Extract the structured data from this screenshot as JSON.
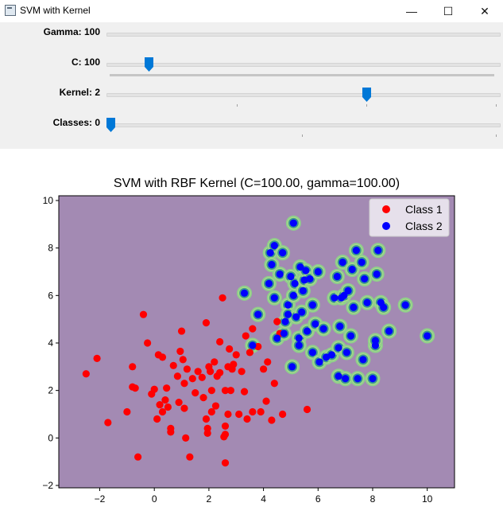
{
  "window": {
    "title": "SVM with Kernel",
    "minimize_glyph": "—",
    "maximize_glyph": "☐",
    "close_glyph": "✕"
  },
  "sliders": [
    {
      "label": "Gamma: 100",
      "value": 100,
      "fraction": 1.0,
      "show_thumb": false
    },
    {
      "label": "C: 100",
      "value": 100,
      "fraction": 0.1,
      "show_thumb": true
    },
    {
      "label": "Kernel: 2",
      "value": 2,
      "fraction": 0.66,
      "show_thumb": true
    },
    {
      "label": "Classes: 0",
      "value": 0,
      "fraction": 0.0,
      "show_thumb": true
    }
  ],
  "colors": {
    "background_region": "#a38ab3",
    "class1": "#ff0000",
    "class2": "#0000ff",
    "decision_boundary": "#8fd18a",
    "slider_thumb": "#0078d7"
  },
  "chart_data": {
    "type": "scatter",
    "title": "SVM with RBF Kernel (C=100.00, gamma=100.00)",
    "xlim": [
      -3.5,
      11
    ],
    "ylim": [
      -2.1,
      10.2
    ],
    "xticks": [
      -2,
      0,
      2,
      4,
      6,
      8,
      10
    ],
    "yticks": [
      -2,
      0,
      2,
      4,
      6,
      8,
      10
    ],
    "xtick_labels": [
      "−2",
      "0",
      "2",
      "4",
      "6",
      "8",
      "10"
    ],
    "ytick_labels": [
      "−2",
      "0",
      "2",
      "4",
      "6",
      "8",
      "10"
    ],
    "legend_position": "top-right",
    "series": [
      {
        "name": "Class 1",
        "color": "#ff0000",
        "points": [
          [
            -2.5,
            2.7
          ],
          [
            -2.1,
            3.35
          ],
          [
            -1.7,
            0.65
          ],
          [
            -1.0,
            1.1
          ],
          [
            -0.8,
            3.0
          ],
          [
            -0.8,
            2.15
          ],
          [
            -0.7,
            2.1
          ],
          [
            -0.6,
            -0.8
          ],
          [
            -0.4,
            5.2
          ],
          [
            -0.25,
            4.0
          ],
          [
            -0.1,
            1.85
          ],
          [
            0.0,
            2.05
          ],
          [
            0.1,
            0.8
          ],
          [
            0.15,
            3.5
          ],
          [
            0.2,
            1.4
          ],
          [
            0.3,
            3.4
          ],
          [
            0.3,
            1.1
          ],
          [
            0.4,
            1.6
          ],
          [
            0.45,
            2.1
          ],
          [
            0.5,
            1.3
          ],
          [
            0.6,
            0.4
          ],
          [
            0.6,
            0.25
          ],
          [
            0.7,
            3.05
          ],
          [
            0.85,
            2.6
          ],
          [
            0.95,
            3.65
          ],
          [
            0.9,
            1.5
          ],
          [
            1.0,
            4.5
          ],
          [
            1.05,
            3.3
          ],
          [
            1.1,
            2.3
          ],
          [
            1.1,
            1.25
          ],
          [
            1.15,
            0.0
          ],
          [
            1.2,
            2.9
          ],
          [
            1.3,
            -0.8
          ],
          [
            1.4,
            2.5
          ],
          [
            1.5,
            1.9
          ],
          [
            1.6,
            2.8
          ],
          [
            1.75,
            2.55
          ],
          [
            1.8,
            1.7
          ],
          [
            1.9,
            4.85
          ],
          [
            1.9,
            0.8
          ],
          [
            1.95,
            0.4
          ],
          [
            1.95,
            0.2
          ],
          [
            2.0,
            3.0
          ],
          [
            2.05,
            2.8
          ],
          [
            2.1,
            1.1
          ],
          [
            2.1,
            2.0
          ],
          [
            2.2,
            3.2
          ],
          [
            2.25,
            1.35
          ],
          [
            2.3,
            2.6
          ],
          [
            2.4,
            4.05
          ],
          [
            2.4,
            2.75
          ],
          [
            2.5,
            5.9
          ],
          [
            2.55,
            0.05
          ],
          [
            2.6,
            2.0
          ],
          [
            2.6,
            0.15
          ],
          [
            2.6,
            -1.05
          ],
          [
            2.6,
            0.5
          ],
          [
            2.7,
            3.0
          ],
          [
            2.7,
            1.0
          ],
          [
            2.75,
            3.75
          ],
          [
            2.8,
            2.0
          ],
          [
            2.85,
            2.9
          ],
          [
            2.9,
            3.1
          ],
          [
            3.0,
            3.5
          ],
          [
            3.1,
            1.0
          ],
          [
            3.2,
            2.8
          ],
          [
            3.3,
            1.95
          ],
          [
            3.35,
            4.3
          ],
          [
            3.4,
            0.8
          ],
          [
            3.5,
            3.6
          ],
          [
            3.6,
            4.6
          ],
          [
            3.6,
            1.1
          ],
          [
            3.8,
            3.85
          ],
          [
            3.9,
            1.1
          ],
          [
            4.0,
            2.9
          ],
          [
            4.1,
            1.55
          ],
          [
            4.15,
            3.2
          ],
          [
            4.3,
            0.75
          ],
          [
            4.4,
            2.3
          ],
          [
            4.5,
            4.9
          ],
          [
            4.6,
            4.4
          ],
          [
            4.7,
            1.0
          ],
          [
            5.6,
            1.2
          ]
        ]
      },
      {
        "name": "Class 2",
        "color": "#0000ff",
        "points": [
          [
            3.3,
            6.1
          ],
          [
            3.6,
            3.9
          ],
          [
            3.8,
            5.2
          ],
          [
            4.2,
            6.5
          ],
          [
            4.25,
            7.8
          ],
          [
            4.3,
            7.3
          ],
          [
            4.4,
            8.1
          ],
          [
            4.4,
            5.9
          ],
          [
            4.5,
            4.2
          ],
          [
            4.6,
            6.9
          ],
          [
            4.7,
            7.8
          ],
          [
            4.75,
            4.4
          ],
          [
            4.8,
            4.9
          ],
          [
            4.9,
            5.6
          ],
          [
            4.9,
            5.2
          ],
          [
            5.0,
            6.8
          ],
          [
            5.05,
            3.0
          ],
          [
            5.1,
            6.0
          ],
          [
            5.1,
            9.05
          ],
          [
            5.15,
            6.5
          ],
          [
            5.2,
            5.1
          ],
          [
            5.3,
            4.2
          ],
          [
            5.3,
            3.9
          ],
          [
            5.35,
            7.2
          ],
          [
            5.4,
            5.3
          ],
          [
            5.45,
            6.2
          ],
          [
            5.5,
            6.65
          ],
          [
            5.55,
            7.05
          ],
          [
            5.6,
            4.5
          ],
          [
            5.7,
            6.7
          ],
          [
            5.8,
            5.6
          ],
          [
            5.8,
            3.6
          ],
          [
            5.9,
            4.8
          ],
          [
            6.0,
            7.0
          ],
          [
            6.05,
            3.2
          ],
          [
            6.2,
            4.6
          ],
          [
            6.3,
            3.4
          ],
          [
            6.5,
            3.5
          ],
          [
            6.6,
            5.9
          ],
          [
            6.7,
            6.8
          ],
          [
            6.75,
            3.8
          ],
          [
            6.75,
            2.6
          ],
          [
            6.8,
            4.7
          ],
          [
            6.85,
            5.9
          ],
          [
            6.9,
            7.4
          ],
          [
            6.95,
            6.0
          ],
          [
            7.0,
            2.5
          ],
          [
            7.05,
            3.6
          ],
          [
            7.1,
            6.2
          ],
          [
            7.2,
            4.3
          ],
          [
            7.25,
            7.1
          ],
          [
            7.3,
            5.5
          ],
          [
            7.4,
            7.9
          ],
          [
            7.45,
            2.5
          ],
          [
            7.6,
            7.4
          ],
          [
            7.65,
            3.3
          ],
          [
            7.7,
            6.7
          ],
          [
            7.8,
            5.7
          ],
          [
            8.0,
            2.5
          ],
          [
            8.1,
            3.9
          ],
          [
            8.1,
            4.1
          ],
          [
            8.15,
            6.9
          ],
          [
            8.2,
            7.9
          ],
          [
            8.3,
            5.7
          ],
          [
            8.4,
            5.5
          ],
          [
            8.6,
            4.5
          ],
          [
            9.2,
            5.6
          ],
          [
            10.0,
            4.3
          ]
        ]
      }
    ]
  }
}
